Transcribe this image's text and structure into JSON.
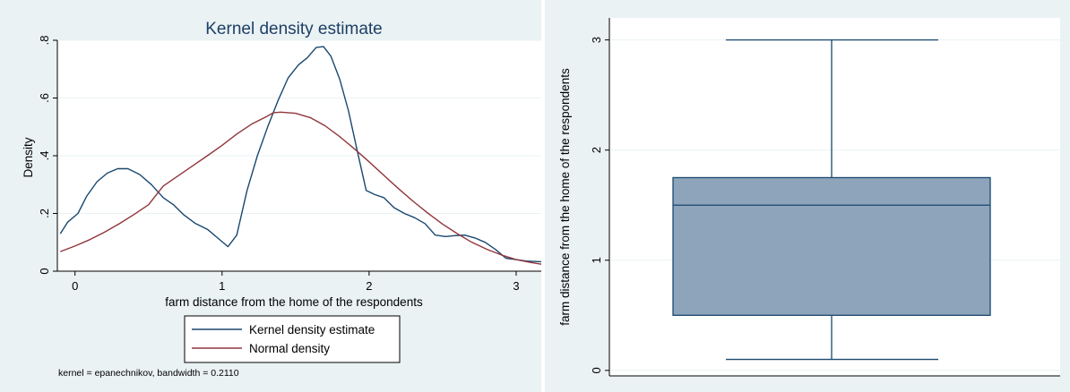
{
  "chart_data": [
    {
      "type": "line",
      "title": "Kernel density estimate",
      "xlabel": "farm distance from the home of the respondents",
      "ylabel": "Density",
      "xlim": [
        -0.12,
        3.25
      ],
      "ylim": [
        0,
        0.8
      ],
      "x_ticks": [
        0,
        1,
        2,
        3
      ],
      "y_ticks": [
        0,
        0.2,
        0.4,
        0.6,
        0.8
      ],
      "x_tick_labels": [
        "0",
        "1",
        "2",
        "3"
      ],
      "y_tick_labels": [
        "0",
        ".2",
        ".4",
        ".6",
        ".8"
      ],
      "grid": true,
      "legend_position": "bottom",
      "note": "kernel = epanechnikov, bandwidth = 0.2110",
      "series": [
        {
          "name": "Kernel density estimate",
          "color": "#1a476f",
          "x": [
            -0.1,
            -0.05,
            0.02,
            0.08,
            0.15,
            0.22,
            0.29,
            0.36,
            0.44,
            0.52,
            0.6,
            0.67,
            0.74,
            0.82,
            0.9,
            0.97,
            1.04,
            1.1,
            1.17,
            1.24,
            1.31,
            1.38,
            1.45,
            1.52,
            1.58,
            1.64,
            1.69,
            1.74,
            1.8,
            1.86,
            1.92,
            1.98,
            2.04,
            2.1,
            2.17,
            2.24,
            2.31,
            2.38,
            2.45,
            2.52,
            2.58,
            2.65,
            2.72,
            2.79,
            2.86,
            2.93,
            3.0,
            3.07,
            3.2
          ],
          "y": [
            0.13,
            0.17,
            0.2,
            0.26,
            0.31,
            0.34,
            0.355,
            0.355,
            0.335,
            0.3,
            0.255,
            0.23,
            0.195,
            0.165,
            0.145,
            0.115,
            0.085,
            0.125,
            0.28,
            0.4,
            0.5,
            0.59,
            0.67,
            0.715,
            0.74,
            0.775,
            0.778,
            0.745,
            0.665,
            0.555,
            0.415,
            0.28,
            0.265,
            0.255,
            0.22,
            0.2,
            0.185,
            0.165,
            0.125,
            0.12,
            0.123,
            0.125,
            0.115,
            0.1,
            0.075,
            0.045,
            0.04,
            0.035,
            0.032
          ]
        },
        {
          "name": "Normal density",
          "color": "#90353b",
          "x": [
            -0.1,
            0.0,
            0.1,
            0.2,
            0.3,
            0.4,
            0.5,
            0.6,
            0.7,
            0.8,
            0.9,
            1.0,
            1.1,
            1.2,
            1.3,
            1.35,
            1.4,
            1.5,
            1.6,
            1.7,
            1.8,
            1.9,
            2.0,
            2.1,
            2.2,
            2.3,
            2.4,
            2.5,
            2.6,
            2.7,
            2.8,
            2.9,
            3.0,
            3.1,
            3.2
          ],
          "y": [
            0.068,
            0.087,
            0.109,
            0.135,
            0.164,
            0.196,
            0.23,
            0.295,
            0.33,
            0.365,
            0.4,
            0.436,
            0.475,
            0.509,
            0.535,
            0.549,
            0.551,
            0.547,
            0.532,
            0.504,
            0.466,
            0.424,
            0.379,
            0.332,
            0.286,
            0.242,
            0.201,
            0.163,
            0.13,
            0.1,
            0.076,
            0.056,
            0.04,
            0.03,
            0.022
          ]
        }
      ]
    },
    {
      "type": "box",
      "title": "",
      "ylabel": "farm distance from the home of the respondents",
      "ylim": [
        -0.05,
        3.2
      ],
      "y_ticks": [
        0,
        1,
        2,
        3
      ],
      "y_tick_labels": [
        "0",
        "1",
        "2",
        "3"
      ],
      "grid": true,
      "box": {
        "min": 0.1,
        "q1": 0.5,
        "median": 1.5,
        "q3": 1.75,
        "max": 3.0,
        "fill": "#8da4ba",
        "stroke": "#1a476f"
      }
    }
  ]
}
